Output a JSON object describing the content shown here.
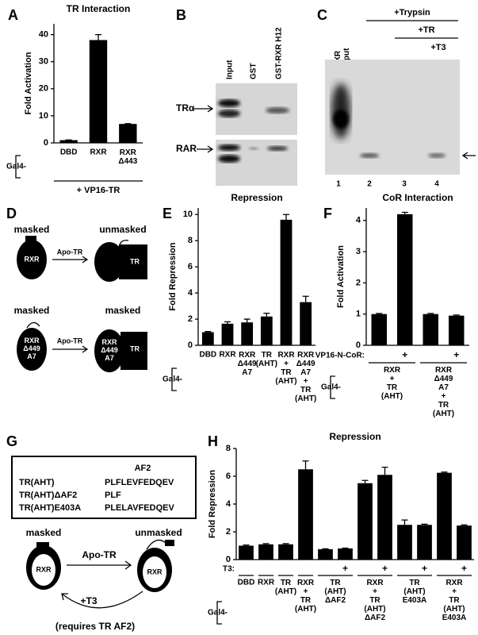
{
  "chart_data": [
    {
      "type": "bar",
      "panel": "A",
      "title": "TR Interaction",
      "y_label": "Fold Activation",
      "categories": [
        "DBD",
        "RXR",
        "RXR\nΔ443"
      ],
      "values": [
        1,
        38,
        7
      ],
      "errors": [
        0.1,
        2,
        0.1
      ],
      "color": "#000000",
      "ylim": [
        0,
        44
      ],
      "yticks": [
        0,
        10,
        20,
        30,
        40
      ],
      "group_label": "Gal4-",
      "footer": "+ VP16-TR"
    },
    {
      "type": "bar",
      "panel": "E",
      "title": "Repression",
      "y_label": "Fold Repression",
      "categories": [
        "DBD",
        "RXR",
        "RXR\nΔ449\nA7",
        "TR\n(AHT)",
        "RXR\n+\nTR\n(AHT)",
        "RXR\nΔ449\nA7\n+\nTR\n(AHT)"
      ],
      "values": [
        1,
        1.65,
        1.75,
        2.2,
        9.6,
        3.3
      ],
      "errors": [
        0.05,
        0.15,
        0.25,
        0.25,
        0.4,
        0.45
      ],
      "color": "#000000",
      "ylim": [
        0,
        10.5
      ],
      "yticks": [
        0,
        2,
        4,
        6,
        8,
        10
      ],
      "group_label": "Gal4-"
    },
    {
      "type": "bar",
      "panel": "F",
      "title": "CoR Interaction",
      "y_label": "Fold Activation",
      "treatment_label": "VP16-N-CoR:",
      "treatment": [
        null,
        "+",
        null,
        "+"
      ],
      "categories": [
        "RXR\n+\nTR\n(AHT)",
        null,
        "RXR\nΔ449\nA7\n+\nTR\n(AHT)",
        null
      ],
      "values": [
        1,
        4.2,
        1,
        0.95
      ],
      "errors": [
        0.02,
        0.06,
        0.02,
        0.02
      ],
      "color": "#000000",
      "ylim": [
        0,
        4.4
      ],
      "yticks": [
        0,
        1,
        2,
        3,
        4
      ],
      "group_label": "Gal4-"
    },
    {
      "type": "bar",
      "panel": "H",
      "title": "Repression",
      "y_label": "Fold Repression",
      "treatment_label": "T3:",
      "treatment": [
        null,
        null,
        null,
        null,
        null,
        "+",
        null,
        "+",
        null,
        "+",
        null,
        "+"
      ],
      "categories": [
        "DBD",
        "RXR",
        "TR\n(AHT)",
        "RXR\n+\nTR\n(AHT)",
        "TR\n(AHT)\nΔAF2",
        null,
        "RXR\n+\nTR\n(AHT)\nΔAF2",
        null,
        "TR\n(AHT)\nE403A",
        null,
        "RXR\n+\nTR\n(AHT)\nE403A",
        null
      ],
      "values": [
        1,
        1.1,
        1.1,
        6.5,
        0.75,
        0.8,
        5.5,
        6.1,
        2.5,
        2.5,
        6.25,
        2.45
      ],
      "errors": [
        0.05,
        0.05,
        0.05,
        0.6,
        0.03,
        0.03,
        0.2,
        0.55,
        0.35,
        0.05,
        0.05,
        0.05
      ],
      "color": "#000000",
      "ylim": [
        0,
        8
      ],
      "yticks": [
        0,
        2,
        4,
        6,
        8
      ],
      "group_label": "Gal4-"
    }
  ],
  "gel_b": {
    "panel": "B",
    "lanes": [
      "Input",
      "GST",
      "GST-RXR H12"
    ],
    "bands": [
      "TRα",
      "RAR"
    ]
  },
  "gel_c": {
    "panel": "C",
    "lane_label": "RXR\nInput",
    "treatments": [
      "+Trypsin",
      "+TR",
      "+T3"
    ],
    "lane_numbers": [
      1,
      2,
      3,
      4
    ]
  },
  "diagram_d": {
    "panel": "D",
    "top": {
      "left": "masked",
      "right": "unmasked",
      "arrow": "Apo-TR",
      "receptor": "RXR",
      "partner": "TR"
    },
    "bottom": {
      "left": "masked",
      "right": "masked",
      "arrow": "Apo-TR",
      "receptor": "RXR\nΔ449\nA7",
      "partner": "TR"
    }
  },
  "diagram_g": {
    "panel": "G",
    "box_title": "AF2",
    "rows": [
      [
        "TR(AHT)",
        "PLFLEVFEDQEV"
      ],
      [
        "TR(AHT)ΔAF2",
        "PLF"
      ],
      [
        "TR(AHT)E403A",
        "PLELAVFEDQEV"
      ]
    ],
    "left": "masked",
    "right": "unmasked",
    "arrow": "Apo-TR",
    "receptor": "RXR",
    "back_arrow": "+T3",
    "note": "(requires TR AF2)"
  }
}
